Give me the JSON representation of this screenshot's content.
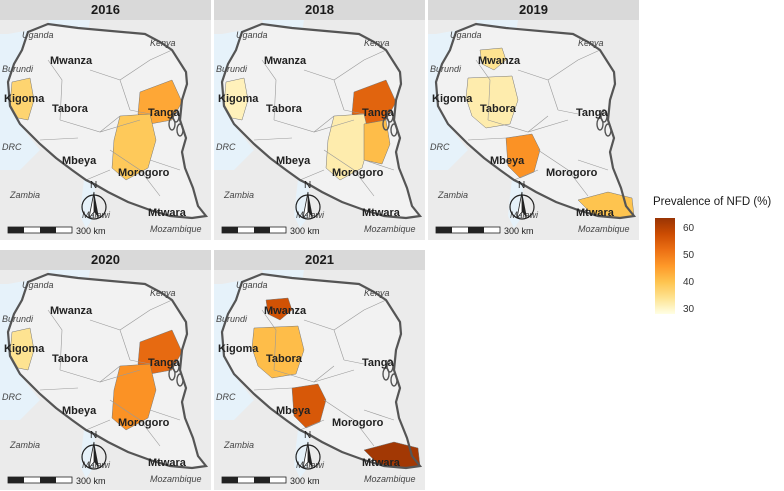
{
  "panels": [
    {
      "year": "2016"
    },
    {
      "year": "2018"
    },
    {
      "year": "2019"
    },
    {
      "year": "2020"
    },
    {
      "year": "2021"
    }
  ],
  "map_labels": {
    "uganda": "Uganda",
    "kenya": "Kenya",
    "burundi": "Burundi",
    "drc": "DRC",
    "zambia": "Zambia",
    "malawi": "Malawi",
    "mozambique": "Mozambique",
    "mwanza": "Mwanza",
    "kigoma": "Kigoma",
    "tabora": "Tabora",
    "tanga": "Tanga",
    "mbeya": "Mbeya",
    "morogoro": "Morogoro",
    "mtwara": "Mtwara",
    "north": "N",
    "scale": "300 km"
  },
  "region_prevalence": {
    "2016": {
      "Kigoma": 38,
      "Tanga": 45,
      "Morogoro": 40
    },
    "2018": {
      "Kigoma": 32,
      "Tanga": 55,
      "Morogoro": 33,
      "Morogoro_east": 42
    },
    "2019": {
      "Mwanza": 35,
      "Tabora": 33,
      "Mbeya": 48,
      "Mtwara": 41
    },
    "2020": {
      "Kigoma": 35,
      "Tanga": 54,
      "Morogoro": 48
    },
    "2021": {
      "Mwanza": 58,
      "Tabora": 42,
      "Mbeya": 57,
      "Mtwara": 64
    }
  },
  "legend": {
    "title": "Prevalence of NFD (%)",
    "ticks": [
      "60",
      "50",
      "40",
      "30"
    ],
    "range": [
      29,
      65
    ]
  },
  "colors": {
    "land": "#f2f2f2",
    "water": "#e6f2fa",
    "border": "#555555",
    "background": "#ebebeb"
  }
}
